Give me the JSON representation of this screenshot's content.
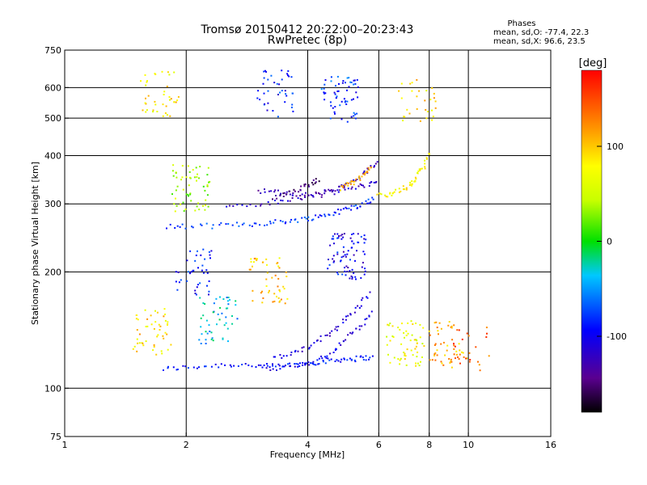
{
  "chart_data": {
    "type": "scatter",
    "title": "Tromsø 20150412 20:22:00–20:23:43",
    "subtitle": "RwPretec (8p)",
    "xlabel": "Frequency [MHz]",
    "ylabel": "Stationary phase Virtual Height [km]",
    "x_scale": "log",
    "y_scale": "log",
    "xlim": [
      1,
      16
    ],
    "ylim": [
      75,
      750
    ],
    "xticks": [
      1,
      2,
      4,
      6,
      8,
      10,
      16
    ],
    "xtick_labels": [
      "1",
      "2",
      "4",
      "6",
      "8",
      "10",
      "16"
    ],
    "yticks": [
      75,
      100,
      200,
      300,
      400,
      500,
      600,
      750
    ],
    "ytick_labels": [
      "75",
      "100",
      "200",
      "300",
      "400",
      "500",
      "600",
      "750"
    ],
    "grid_x": [
      2,
      4,
      6,
      8,
      10
    ],
    "grid_y": [
      100,
      200,
      300,
      400,
      500,
      600
    ],
    "phase_stats": {
      "heading": "Phases",
      "line_o": "mean, sd,O: -77.4, 22.3",
      "line_x": "mean, sd,X:  96.6, 23.5"
    },
    "colorbar": {
      "label": "[deg]",
      "range": [
        -180,
        180
      ],
      "ticks": [
        100,
        0,
        -100
      ],
      "tick_labels": [
        "100",
        "0",
        "-100"
      ]
    },
    "series": [
      {
        "traces": [
          {
            "f": [
              1.75,
              1.95,
              2.2,
              2.5,
              2.8,
              3.1,
              3.4,
              3.7,
              4.0,
              4.3,
              4.6,
              4.9,
              5.2,
              5.5,
              5.8
            ],
            "h": [
              112,
              113,
              114,
              115,
              115,
              114,
              114,
              115,
              116,
              117,
              118,
              119,
              119,
              120,
              120
            ],
            "phase": -90
          },
          {
            "f": [
              3.1,
              3.4,
              3.7,
              4.0,
              4.3,
              4.6,
              4.9,
              5.2,
              5.5,
              5.8
            ],
            "h": [
              112,
              113,
              114,
              116,
              119,
              124,
              132,
              140,
              148,
              160
            ],
            "phase": -105
          },
          {
            "f": [
              3.3,
              3.6,
              3.9,
              4.2,
              4.5,
              4.8,
              5.1,
              5.4,
              5.7
            ],
            "h": [
              120,
              122,
              126,
              131,
              138,
              146,
              155,
              165,
              178
            ],
            "phase": -110
          },
          {
            "f": [
              1.8,
              2.0,
              2.3,
              2.6,
              2.9,
              3.2,
              3.5,
              3.8,
              4.1,
              4.4,
              4.7,
              5.0,
              5.3,
              5.6,
              5.9
            ],
            "h": [
              262,
              262,
              263,
              265,
              266,
              268,
              270,
              273,
              276,
              280,
              285,
              291,
              296,
              303,
              310
            ],
            "phase": -80
          },
          {
            "f": [
              2.5,
              2.9,
              3.3,
              3.7,
              4.1,
              4.5,
              4.9,
              5.3,
              5.7,
              6.0
            ],
            "h": [
              296,
              298,
              302,
              308,
              314,
              320,
              326,
              332,
              338,
              345
            ],
            "phase": -120
          },
          {
            "f": [
              3.0,
              3.3,
              3.6,
              3.9,
              4.2,
              4.5,
              4.8,
              5.1,
              5.4,
              5.7,
              6.0
            ],
            "h": [
              325,
              322,
              318,
              316,
              318,
              323,
              330,
              340,
              352,
              368,
              390
            ],
            "phase": -125
          },
          {
            "f": [
              3.3,
              3.5,
              3.7,
              3.9,
              4.1,
              4.3
            ],
            "h": [
              312,
              318,
              325,
              332,
              340,
              348
            ],
            "phase": -150
          },
          {
            "f": [
              6.0,
              6.3,
              6.6,
              6.9,
              7.2,
              7.4,
              7.6,
              7.8,
              8.0
            ],
            "h": [
              315,
              318,
              322,
              328,
              336,
              347,
              362,
              380,
              410
            ],
            "phase": 80
          },
          {
            "f": [
              4.8,
              5.0,
              5.2,
              5.4,
              5.6,
              5.8
            ],
            "h": [
              330,
              335,
              340,
              350,
              362,
              378
            ],
            "phase": 110
          }
        ]
      },
      {
        "clusters": [
          {
            "f_center": 1.72,
            "h_center": 580,
            "n": 40,
            "phase": 85
          },
          {
            "f_center": 2.05,
            "h_center": 330,
            "n": 60,
            "phase": 40
          },
          {
            "f_center": 2.1,
            "h_center": 200,
            "n": 40,
            "phase": -90
          },
          {
            "f_center": 1.65,
            "h_center": 140,
            "n": 50,
            "phase": 90
          },
          {
            "f_center": 2.4,
            "h_center": 150,
            "n": 50,
            "phase": -40
          },
          {
            "f_center": 3.2,
            "h_center": 190,
            "n": 50,
            "phase": 100
          },
          {
            "f_center": 3.3,
            "h_center": 580,
            "n": 40,
            "phase": -90
          },
          {
            "f_center": 4.8,
            "h_center": 560,
            "n": 60,
            "phase": -80
          },
          {
            "f_center": 5.0,
            "h_center": 220,
            "n": 80,
            "phase": -100
          },
          {
            "f_center": 7.0,
            "h_center": 130,
            "n": 60,
            "phase": 70
          },
          {
            "f_center": 8.9,
            "h_center": 130,
            "n": 50,
            "phase": 110
          },
          {
            "f_center": 10.2,
            "h_center": 125,
            "n": 25,
            "phase": 140
          },
          {
            "f_center": 7.5,
            "h_center": 560,
            "n": 30,
            "phase": 90
          }
        ]
      }
    ]
  }
}
